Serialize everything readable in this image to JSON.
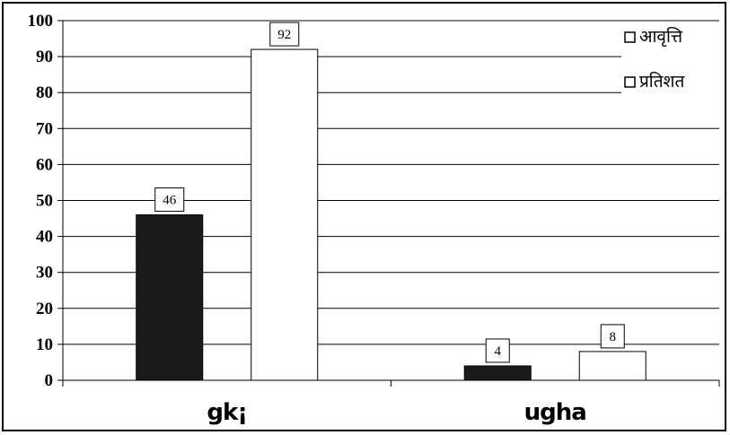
{
  "chart_data": {
    "type": "bar",
    "categories": [
      "gk¡",
      "ugha"
    ],
    "series": [
      {
        "name": "आवृत्ति",
        "values": [
          46,
          4
        ],
        "color": "#1a1a1a"
      },
      {
        "name": "प्रतिशत",
        "values": [
          92,
          8
        ],
        "color": "#ffffff"
      }
    ],
    "title": "",
    "xlabel": "",
    "ylabel": "",
    "ylim": [
      0,
      100
    ],
    "yticks": [
      0,
      10,
      20,
      30,
      40,
      50,
      60,
      70,
      80,
      90,
      100
    ],
    "grid": true,
    "legend_position": "top-right",
    "data_labels": true
  }
}
